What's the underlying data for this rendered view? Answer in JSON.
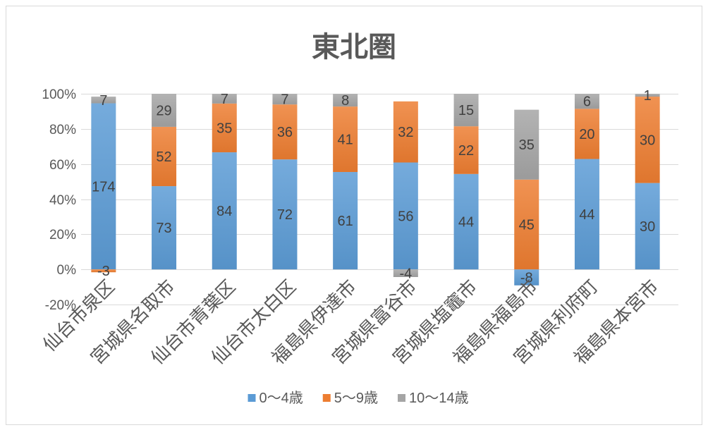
{
  "chart_data": {
    "type": "bar",
    "stacked": "percent",
    "title": "東北圏",
    "categories": [
      "仙台市泉区",
      "宮城県名取市",
      "仙台市青葉区",
      "仙台市太白区",
      "福島県伊達市",
      "宮城県富谷市",
      "宮城県塩竈市",
      "福島県福島市",
      "宮城県利府町",
      "福島県本宮市"
    ],
    "series": [
      {
        "name": "0～4歳",
        "color": "#5B9BD5",
        "values": [
          174,
          73,
          84,
          72,
          61,
          56,
          44,
          -8,
          44,
          30
        ]
      },
      {
        "name": "5～9歳",
        "color": "#ED7D31",
        "values": [
          -3,
          52,
          35,
          36,
          41,
          32,
          22,
          45,
          20,
          30
        ]
      },
      {
        "name": "10～14歳",
        "color": "#A5A5A5",
        "values": [
          7,
          29,
          7,
          7,
          8,
          -4,
          15,
          35,
          6,
          1
        ]
      }
    ],
    "ylim": [
      -0.2,
      1.0
    ],
    "yticks": [
      -0.2,
      0,
      0.2,
      0.4,
      0.6,
      0.8,
      1.0
    ],
    "ytick_labels": [
      "-20%",
      "0%",
      "20%",
      "40%",
      "60%",
      "80%",
      "100%"
    ],
    "grid": true,
    "legend": "bottom",
    "data_labels": true
  }
}
